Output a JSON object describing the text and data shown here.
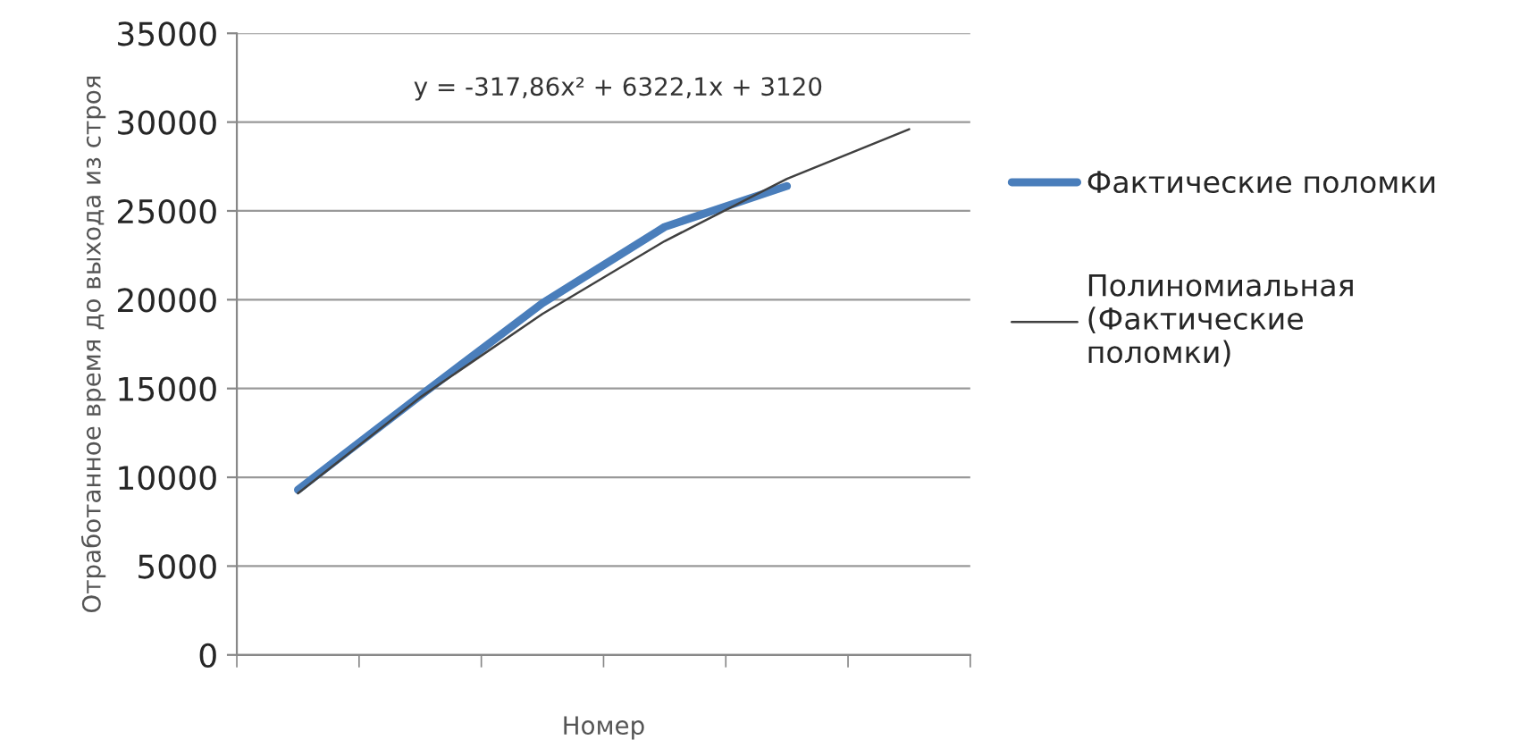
{
  "chart_data": {
    "type": "line",
    "xlabel": "Номер",
    "ylabel": "Отработанное время до выхода из строя",
    "categories": [
      null,
      null,
      null,
      null,
      null,
      null
    ],
    "series": [
      {
        "name": "Фактические поломки",
        "color": "#4a7ebb",
        "values": [
          9300,
          14600,
          19800,
          24100,
          26400,
          null
        ]
      },
      {
        "name": "Полиномиальная\n(Фактические\nполомки)",
        "color": "#404040",
        "values": [
          9100,
          14500,
          19200,
          23300,
          26800,
          29600
        ]
      }
    ],
    "ylim": [
      0,
      35000
    ],
    "yticks": [
      0,
      5000,
      10000,
      15000,
      20000,
      25000,
      30000,
      35000
    ],
    "grid": "y",
    "legend": "right",
    "marker": "none",
    "line_style": "solid",
    "annotations": [
      "y = -317,86x² + 6322,1x + 3120"
    ]
  }
}
